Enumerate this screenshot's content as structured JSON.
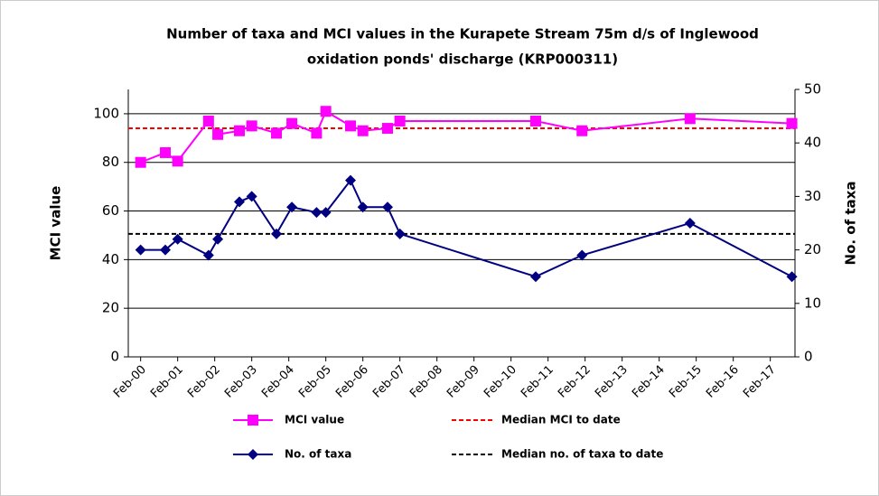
{
  "chart_data": {
    "type": "line",
    "title": [
      "Number of taxa and MCI values in the Kurapete Stream 75m d/s of Inglewood",
      "oxidation ponds' discharge (KRP000311)"
    ],
    "ylabel": "MCI value",
    "y2label": "No. of taxa",
    "x": [
      "2000-02",
      "2000-10",
      "2001-02",
      "2001-12",
      "2002-03",
      "2002-10",
      "2003-02",
      "2003-10",
      "2004-03",
      "2004-11",
      "2005-02",
      "2005-10",
      "2006-02",
      "2006-10",
      "2007-02",
      "2010-10",
      "2012-01",
      "2014-12",
      "2017-09"
    ],
    "series": [
      {
        "name": "MCI value",
        "color": "#ff00ff",
        "marker": "square",
        "values": [
          80,
          84,
          80.5,
          97,
          91.5,
          93,
          95,
          92,
          96,
          92,
          101,
          95,
          93,
          94,
          97,
          97,
          93,
          98,
          96
        ]
      },
      {
        "name": "No. of taxa",
        "color": "#000080",
        "marker": "diamond",
        "axis": "y2",
        "values": [
          20,
          20,
          22,
          19,
          22,
          29,
          30,
          23,
          28,
          27,
          27,
          33,
          28,
          28,
          23,
          15,
          19,
          25,
          15
        ]
      }
    ],
    "reference_lines": [
      {
        "name": "Median MCI to date",
        "color": "#ff0000",
        "value": 94
      },
      {
        "name": "Median no. of taxa to date",
        "color": "#000000",
        "value": 23,
        "axis": "y2"
      }
    ],
    "xlim": [
      "1999-10",
      "2017-10"
    ],
    "xticks": [
      {
        "value": "2000-02",
        "label": "Feb-00"
      },
      {
        "value": "2001-02",
        "label": "Feb-01"
      },
      {
        "value": "2002-02",
        "label": "Feb-02"
      },
      {
        "value": "2003-02",
        "label": "Feb-03"
      },
      {
        "value": "2004-02",
        "label": "Feb-04"
      },
      {
        "value": "2005-02",
        "label": "Feb-05"
      },
      {
        "value": "2006-02",
        "label": "Feb-06"
      },
      {
        "value": "2007-02",
        "label": "Feb-07"
      },
      {
        "value": "2008-02",
        "label": "Feb-08"
      },
      {
        "value": "2009-02",
        "label": "Feb-09"
      },
      {
        "value": "2010-02",
        "label": "Feb-10"
      },
      {
        "value": "2011-02",
        "label": "Feb-11"
      },
      {
        "value": "2012-02",
        "label": "Feb-12"
      },
      {
        "value": "2013-02",
        "label": "Feb-13"
      },
      {
        "value": "2014-02",
        "label": "Feb-14"
      },
      {
        "value": "2015-02",
        "label": "Feb-15"
      },
      {
        "value": "2016-02",
        "label": "Feb-16"
      },
      {
        "value": "2017-02",
        "label": "Feb-17"
      }
    ],
    "ylim": [
      0,
      110
    ],
    "yticks": [
      0,
      20,
      40,
      60,
      80,
      100
    ],
    "y2lim": [
      0,
      50
    ],
    "y2ticks": [
      0,
      10,
      20,
      30,
      40,
      50
    ],
    "grid": true
  }
}
